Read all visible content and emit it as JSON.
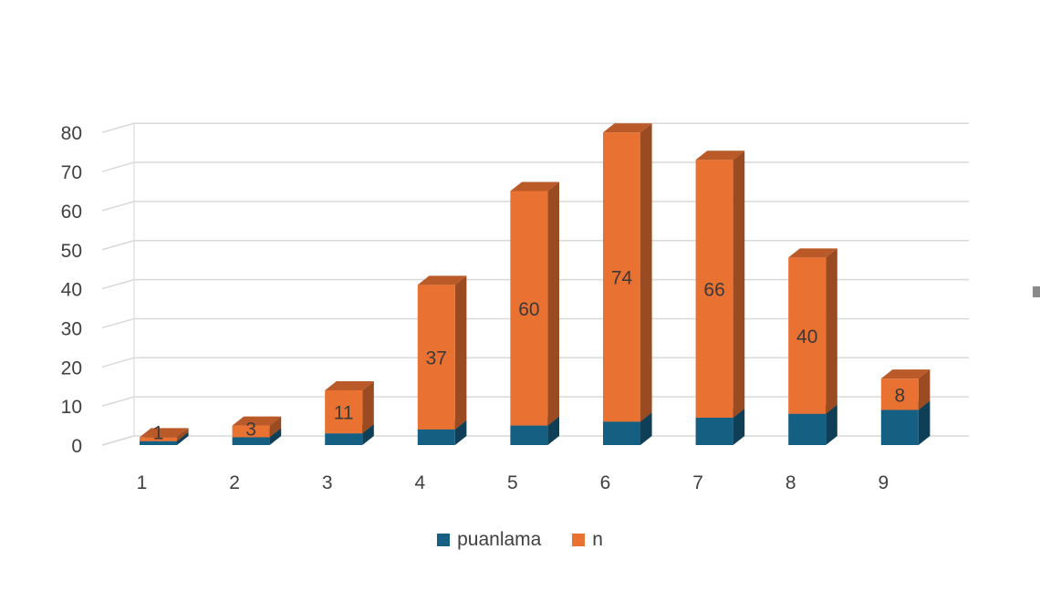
{
  "chart_data": {
    "type": "bar",
    "stacked": true,
    "three_d": true,
    "categories": [
      "1",
      "2",
      "3",
      "4",
      "5",
      "6",
      "7",
      "8",
      "9"
    ],
    "series": [
      {
        "name": "puanlama",
        "values": [
          1,
          2,
          3,
          4,
          5,
          6,
          7,
          8,
          9
        ],
        "color": "#156082"
      },
      {
        "name": "n",
        "values": [
          1,
          3,
          11,
          37,
          60,
          74,
          66,
          40,
          8
        ],
        "color": "#E97132",
        "data_labels": true
      }
    ],
    "ylim": [
      0,
      80
    ],
    "yticks": [
      0,
      10,
      20,
      30,
      40,
      50,
      60,
      70,
      80
    ],
    "grid": true,
    "legend": "bottom",
    "title": "",
    "xlabel": "",
    "ylabel": ""
  }
}
